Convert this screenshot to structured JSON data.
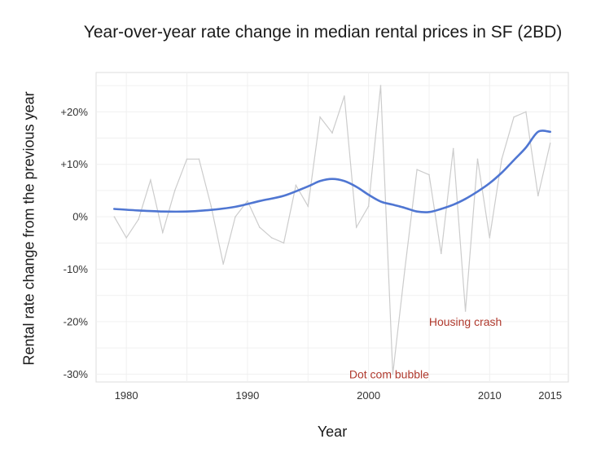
{
  "chart_data": {
    "type": "line",
    "title": "Year-over-year rate change in median rental prices in SF (2BD)",
    "xlabel": "Year",
    "ylabel": "Rental rate change from the previous year",
    "xlim": [
      1977.5,
      2016.5
    ],
    "ylim": [
      -31.5,
      27.5
    ],
    "x_ticks": [
      1980,
      1990,
      2000,
      2010,
      2015
    ],
    "y_ticks": [
      {
        "value": 20,
        "label": "+20%"
      },
      {
        "value": 10,
        "label": "+10%"
      },
      {
        "value": 0,
        "label": "0%"
      },
      {
        "value": -10,
        "label": "-10%"
      },
      {
        "value": -20,
        "label": "-20%"
      },
      {
        "value": -30,
        "label": "-30%"
      }
    ],
    "grid": true,
    "series": [
      {
        "role": "raw",
        "color": "#cccccc",
        "x": [
          1979,
          1980,
          1981,
          1982,
          1983,
          1984,
          1985,
          1986,
          1987,
          1988,
          1989,
          1990,
          1991,
          1992,
          1993,
          1994,
          1995,
          1996,
          1997,
          1998,
          1999,
          2000,
          2001,
          2002,
          2003,
          2004,
          2005,
          2006,
          2007,
          2008,
          2009,
          2010,
          2011,
          2012,
          2013,
          2014,
          2015
        ],
        "values": [
          0,
          -4,
          -0.5,
          7,
          -3,
          5,
          11,
          11,
          2,
          -9,
          0,
          3,
          -2,
          -4,
          -5,
          6,
          2,
          19,
          16,
          23,
          -2,
          2,
          25,
          -30,
          -10,
          9,
          8,
          -7,
          13,
          -18,
          11,
          -4,
          11,
          19,
          20,
          4,
          14
        ]
      },
      {
        "role": "trend",
        "color": "#4f76d2",
        "x": [
          1979,
          1981,
          1983,
          1985,
          1987,
          1989,
          1991,
          1993,
          1995,
          1996,
          1997,
          1998,
          1999,
          2000,
          2001,
          2002,
          2003,
          2004,
          2005,
          2006,
          2007,
          2008,
          2009,
          2010,
          2011,
          2012,
          2013,
          2014,
          2015
        ],
        "values": [
          1.5,
          1.2,
          1.0,
          1.0,
          1.3,
          1.9,
          3.0,
          4.0,
          5.8,
          6.8,
          7.2,
          6.8,
          5.7,
          4.2,
          2.9,
          2.3,
          1.7,
          1.0,
          0.9,
          1.5,
          2.3,
          3.4,
          4.8,
          6.4,
          8.4,
          10.8,
          13.2,
          16.2,
          16.2
        ]
      }
    ],
    "annotations": [
      {
        "text": "Housing crash",
        "x": 2008.0,
        "y": -20,
        "color": "#b03a2e"
      },
      {
        "text": "Dot com bubble",
        "x": 2001.7,
        "y": -30,
        "color": "#b03a2e"
      }
    ]
  }
}
